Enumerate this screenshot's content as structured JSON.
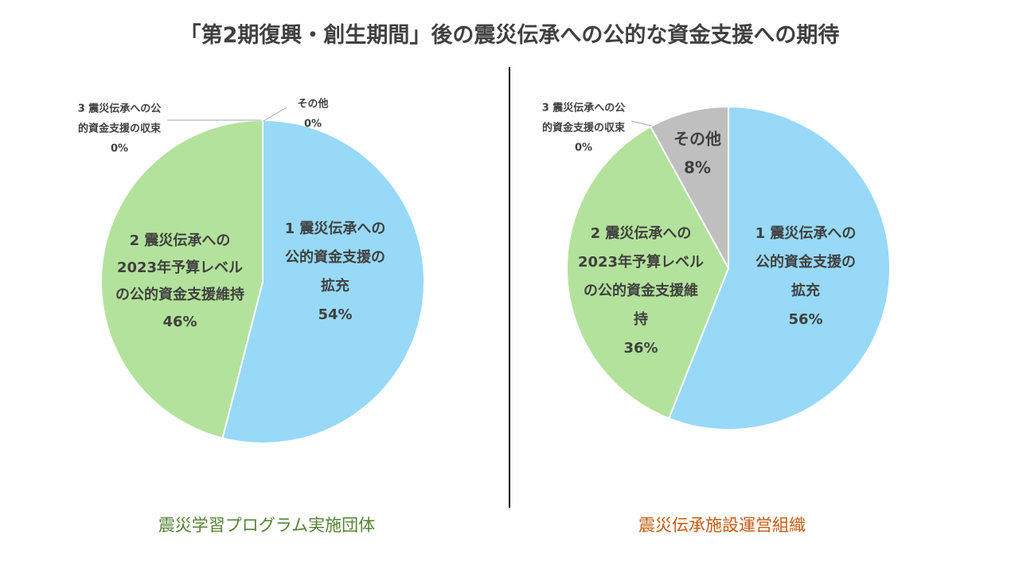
{
  "title": "「第2期復興・創生期間」後の震災伝承への公的な資金支援への期待",
  "colors": {
    "blue": "#97D9F7",
    "green": "#B3E29C",
    "gray": "#BFBFBF",
    "text": "#404040"
  },
  "chart_data": [
    {
      "type": "pie",
      "title": "震災学習プログラム実施団体",
      "slices": [
        {
          "label_lines": [
            "1 震災伝承への",
            "公的資金支援の",
            "拡充"
          ],
          "value": 54,
          "pct": "54%",
          "color": "#97D9F7"
        },
        {
          "label_lines": [
            "2 震災伝承への",
            "2023年予算レベル",
            "の公的資金支援維持"
          ],
          "value": 46,
          "pct": "46%",
          "color": "#B3E29C"
        },
        {
          "label_lines": [
            "3 震災伝承への公",
            "的資金支援の収束"
          ],
          "value": 0,
          "pct": "0%",
          "color": "#F4B183"
        },
        {
          "label_lines": [
            "その他"
          ],
          "value": 0,
          "pct": "0%",
          "color": "#BFBFBF"
        }
      ]
    },
    {
      "type": "pie",
      "title": "震災伝承施設運営組織",
      "slices": [
        {
          "label_lines": [
            "1 震災伝承への",
            "公的資金支援の",
            "拡充"
          ],
          "value": 56,
          "pct": "56%",
          "color": "#97D9F7"
        },
        {
          "label_lines": [
            "2 震災伝承への",
            "2023年予算レベル",
            "の公的資金支援維",
            "持"
          ],
          "value": 36,
          "pct": "36%",
          "color": "#B3E29C"
        },
        {
          "label_lines": [
            "3 震災伝承への公",
            "的資金支援の収束"
          ],
          "value": 0,
          "pct": "0%",
          "color": "#F4B183"
        },
        {
          "label_lines": [
            "その他"
          ],
          "value": 8,
          "pct": "8%",
          "color": "#BFBFBF"
        }
      ]
    }
  ]
}
